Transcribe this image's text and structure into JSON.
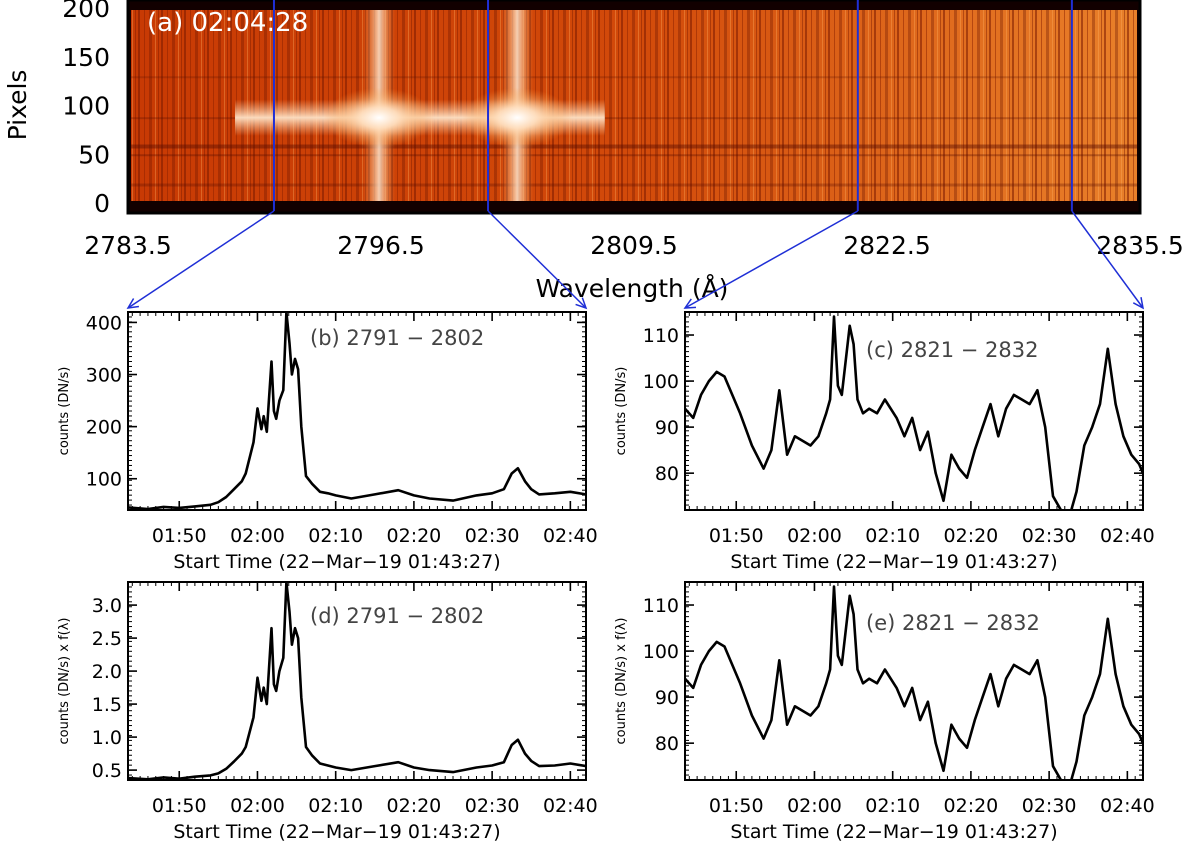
{
  "chart_data": [
    {
      "id": "a",
      "type": "heatmap",
      "panel_label": "(a) 02:04:28",
      "xlabel": "Wavelength (Å)",
      "ylabel": "Pixels",
      "xlim": [
        2783.5,
        2835.5
      ],
      "ylim": [
        0,
        200
      ],
      "xticks": [
        "2783.5",
        "2796.5",
        "2809.5",
        "2822.5",
        "2835.5"
      ],
      "yticks": [
        "0",
        "50",
        "100",
        "150",
        "200"
      ],
      "bright_lines": [
        2796.4,
        2803.5
      ],
      "bright_rows": [
        75,
        100
      ],
      "bands": [
        {
          "x1": 2791,
          "x2": 2802,
          "panels": [
            "b",
            "d"
          ]
        },
        {
          "x1": 2821,
          "x2": 2832,
          "panels": [
            "c",
            "e"
          ]
        }
      ],
      "colormap": [
        "#1a0000",
        "#7a0a00",
        "#c43000",
        "#e86a10",
        "#f7a040",
        "#ffffff"
      ]
    },
    {
      "id": "b",
      "type": "line",
      "label": "(b) 2791 − 2802",
      "ylabel": "counts (DN/s)",
      "xlabel": "Start Time (22−Mar−19 01:43:27)",
      "xlim": [
        103.45,
        162
      ],
      "ylim": [
        40,
        420
      ],
      "xticks": [
        "01:50",
        "02:00",
        "02:10",
        "02:20",
        "02:30",
        "02:40"
      ],
      "xtick_values": [
        110,
        120,
        130,
        140,
        150,
        160
      ],
      "yticks": [
        "100",
        "200",
        "300",
        "400"
      ],
      "ytick_values": [
        100,
        200,
        300,
        400
      ],
      "x": [
        103.45,
        106,
        108,
        110,
        112,
        114,
        115,
        116,
        117,
        118,
        118.5,
        119.5,
        120,
        120.5,
        120.8,
        121.2,
        121.8,
        122.1,
        122.4,
        122.8,
        123.3,
        123.7,
        124.1,
        124.4,
        124.8,
        125.2,
        125.6,
        126.2,
        127,
        128,
        129,
        130,
        132,
        135,
        138,
        140,
        142,
        145,
        148,
        150,
        151.5,
        152.5,
        153.3,
        154.2,
        155,
        156,
        158,
        160,
        162
      ],
      "y": [
        45,
        42,
        46,
        44,
        47,
        50,
        55,
        65,
        80,
        95,
        110,
        170,
        235,
        195,
        220,
        190,
        325,
        230,
        215,
        250,
        270,
        420,
        360,
        300,
        330,
        310,
        200,
        105,
        90,
        75,
        72,
        68,
        62,
        70,
        78,
        68,
        62,
        58,
        68,
        72,
        80,
        110,
        120,
        95,
        80,
        70,
        72,
        75,
        70
      ]
    },
    {
      "id": "c",
      "type": "line",
      "label": "(c) 2821 − 2832",
      "ylabel": "counts (DN/s)",
      "xlabel": "Start Time (22−Mar−19 01:43:27)",
      "xlim": [
        103.45,
        162
      ],
      "ylim": [
        72,
        115
      ],
      "xticks": [
        "01:50",
        "02:00",
        "02:10",
        "02:20",
        "02:30",
        "02:40"
      ],
      "xtick_values": [
        110,
        120,
        130,
        140,
        150,
        160
      ],
      "yticks": [
        "80",
        "90",
        "100",
        "110"
      ],
      "ytick_values": [
        80,
        90,
        100,
        110
      ],
      "x": [
        103.45,
        104.5,
        105.5,
        106.5,
        107.5,
        108.5,
        109.5,
        110.5,
        112,
        113.5,
        114.5,
        115.5,
        116.5,
        117.5,
        118.5,
        119.5,
        120.5,
        121.5,
        122,
        122.5,
        123,
        123.5,
        124.5,
        125,
        125.5,
        126.2,
        127,
        128,
        129,
        130.5,
        131.5,
        132.5,
        133.5,
        134.5,
        135.5,
        136.5,
        137.5,
        138.5,
        139.5,
        140.5,
        141.5,
        142.5,
        143.5,
        144.5,
        145.5,
        146.5,
        147.5,
        148.5,
        149.5,
        150.5,
        151.5,
        152.5,
        153.5,
        154.5,
        155.5,
        156.5,
        157.5,
        158.5,
        159.5,
        160.5,
        161.5,
        162
      ],
      "y": [
        94,
        92,
        97,
        100,
        102,
        101,
        97,
        93,
        86,
        81,
        85,
        98,
        84,
        88,
        87,
        86,
        88,
        93,
        96,
        114,
        99,
        97,
        112,
        108,
        96,
        93,
        94,
        93,
        96,
        92,
        88,
        92,
        85,
        89,
        80,
        74,
        84,
        81,
        79,
        85,
        90,
        95,
        88,
        94,
        97,
        96,
        95,
        98,
        90,
        75,
        72,
        70,
        76,
        86,
        90,
        95,
        107,
        95,
        88,
        84,
        82,
        80
      ]
    },
    {
      "id": "d",
      "type": "line",
      "label": "(d) 2791 − 2802",
      "ylabel": "counts (DN/s) x f(λ)",
      "xlabel": "Start Time (22−Mar−19 01:43:27)",
      "xlim": [
        103.45,
        162
      ],
      "ylim": [
        0.35,
        3.35
      ],
      "xticks": [
        "01:50",
        "02:00",
        "02:10",
        "02:20",
        "02:30",
        "02:40"
      ],
      "xtick_values": [
        110,
        120,
        130,
        140,
        150,
        160
      ],
      "yticks": [
        "0.5",
        "1.0",
        "1.5",
        "2.0",
        "2.5",
        "3.0"
      ],
      "ytick_values": [
        0.5,
        1.0,
        1.5,
        2.0,
        2.5,
        3.0
      ],
      "x": [
        103.45,
        106,
        108,
        110,
        112,
        114,
        115,
        116,
        117,
        118,
        118.5,
        119.5,
        120,
        120.5,
        120.8,
        121.2,
        121.8,
        122.1,
        122.4,
        122.8,
        123.3,
        123.7,
        124.1,
        124.4,
        124.8,
        125.2,
        125.6,
        126.2,
        127,
        128,
        129,
        130,
        132,
        135,
        138,
        140,
        142,
        145,
        148,
        150,
        151.5,
        152.5,
        153.3,
        154.2,
        155,
        156,
        158,
        160,
        162
      ],
      "y": [
        0.38,
        0.36,
        0.39,
        0.37,
        0.4,
        0.42,
        0.45,
        0.52,
        0.63,
        0.75,
        0.85,
        1.3,
        1.9,
        1.55,
        1.75,
        1.5,
        2.65,
        1.8,
        1.7,
        2.0,
        2.2,
        3.35,
        2.9,
        2.4,
        2.65,
        2.5,
        1.6,
        0.85,
        0.72,
        0.6,
        0.57,
        0.54,
        0.5,
        0.56,
        0.62,
        0.54,
        0.5,
        0.47,
        0.54,
        0.57,
        0.62,
        0.88,
        0.96,
        0.75,
        0.64,
        0.56,
        0.57,
        0.6,
        0.56
      ]
    },
    {
      "id": "e",
      "type": "line",
      "label": "(e) 2821 − 2832",
      "ylabel": "counts (DN/s) x f(λ)",
      "xlabel": "Start Time (22−Mar−19 01:43:27)",
      "xlim": [
        103.45,
        162
      ],
      "ylim": [
        72,
        115
      ],
      "xticks": [
        "01:50",
        "02:00",
        "02:10",
        "02:20",
        "02:30",
        "02:40"
      ],
      "xtick_values": [
        110,
        120,
        130,
        140,
        150,
        160
      ],
      "yticks": [
        "80",
        "90",
        "100",
        "110"
      ],
      "ytick_values": [
        80,
        90,
        100,
        110
      ],
      "x": [
        103.45,
        104.5,
        105.5,
        106.5,
        107.5,
        108.5,
        109.5,
        110.5,
        112,
        113.5,
        114.5,
        115.5,
        116.5,
        117.5,
        118.5,
        119.5,
        120.5,
        121.5,
        122,
        122.5,
        123,
        123.5,
        124.5,
        125,
        125.5,
        126.2,
        127,
        128,
        129,
        130.5,
        131.5,
        132.5,
        133.5,
        134.5,
        135.5,
        136.5,
        137.5,
        138.5,
        139.5,
        140.5,
        141.5,
        142.5,
        143.5,
        144.5,
        145.5,
        146.5,
        147.5,
        148.5,
        149.5,
        150.5,
        151.5,
        152.5,
        153.5,
        154.5,
        155.5,
        156.5,
        157.5,
        158.5,
        159.5,
        160.5,
        161.5,
        162
      ],
      "y": [
        94,
        92,
        97,
        100,
        102,
        101,
        97,
        93,
        86,
        81,
        85,
        98,
        84,
        88,
        87,
        86,
        88,
        93,
        96,
        114,
        99,
        97,
        112,
        108,
        96,
        93,
        94,
        93,
        96,
        92,
        88,
        92,
        85,
        89,
        80,
        74,
        84,
        81,
        79,
        85,
        90,
        95,
        88,
        94,
        97,
        96,
        95,
        98,
        90,
        75,
        72,
        70,
        76,
        86,
        90,
        95,
        107,
        95,
        88,
        84,
        82,
        80
      ]
    }
  ],
  "colors": {
    "line": "#000000",
    "connector": "#1f2fd6",
    "label": "#444444"
  }
}
